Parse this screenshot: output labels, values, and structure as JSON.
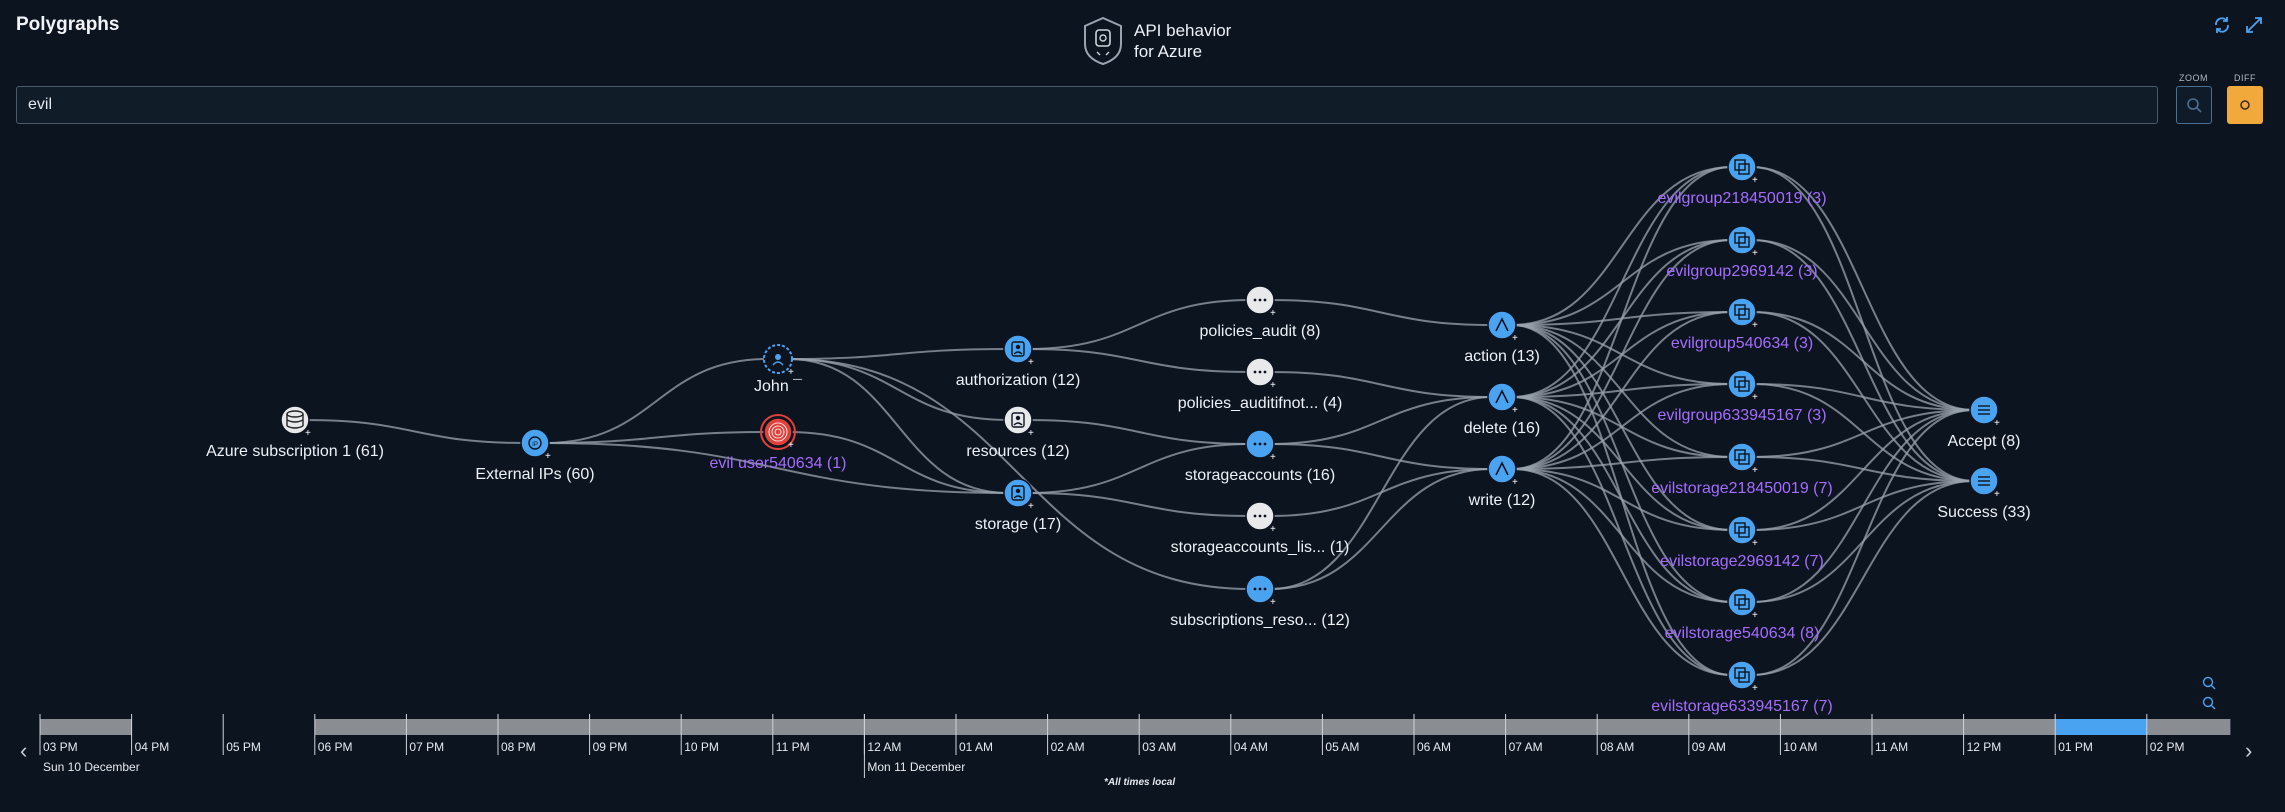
{
  "page_title": "Polygraphs",
  "header": {
    "title_line1": "API behavior",
    "title_line2": "for Azure"
  },
  "search": {
    "value": "evil"
  },
  "controls": {
    "zoom_label": "ZOOM",
    "diff_label": "DIFF"
  },
  "graph": {
    "nodes": [
      {
        "id": "azure",
        "label": "Azure subscription 1 (61)",
        "icon": "database-icon",
        "style": "gray"
      },
      {
        "id": "extip",
        "label": "External IPs (60)",
        "icon": "ip-icon",
        "style": "blue"
      },
      {
        "id": "john",
        "label": "John ¯",
        "icon": "user-dashed-icon",
        "style": "blue-dashed"
      },
      {
        "id": "evil",
        "label": "evil user540634 (1)",
        "icon": "fingerprint-icon",
        "style": "red",
        "highlight": true
      },
      {
        "id": "auth",
        "label": "authorization (12)",
        "icon": "service-icon",
        "style": "blue"
      },
      {
        "id": "resources",
        "label": "resources (12)",
        "icon": "service-icon",
        "style": "gray"
      },
      {
        "id": "storage",
        "label": "storage (17)",
        "icon": "service-icon",
        "style": "blue"
      },
      {
        "id": "pa",
        "label": "policies_audit (8)",
        "icon": "ellipsis-icon",
        "style": "gray"
      },
      {
        "id": "pain",
        "label": "policies_auditifnot... (4)",
        "icon": "ellipsis-icon",
        "style": "gray"
      },
      {
        "id": "sa",
        "label": "storageaccounts (16)",
        "icon": "ellipsis-icon",
        "style": "blue"
      },
      {
        "id": "sal",
        "label": "storageaccounts_lis... (1)",
        "icon": "ellipsis-icon",
        "style": "gray"
      },
      {
        "id": "sr",
        "label": "subscriptions_reso... (12)",
        "icon": "ellipsis-icon",
        "style": "blue"
      },
      {
        "id": "action",
        "label": "action (13)",
        "icon": "action-icon",
        "style": "blue"
      },
      {
        "id": "delete",
        "label": "delete (16)",
        "icon": "action-icon",
        "style": "blue"
      },
      {
        "id": "write",
        "label": "write (12)",
        "icon": "action-icon",
        "style": "blue"
      },
      {
        "id": "g1",
        "label": "evilgroup218450019 (3)",
        "icon": "resource-group-icon",
        "style": "blue",
        "highlight": true
      },
      {
        "id": "g2",
        "label": "evilgroup2969142 (3)",
        "icon": "resource-group-icon",
        "style": "blue",
        "highlight": true
      },
      {
        "id": "g3",
        "label": "evilgroup540634 (3)",
        "icon": "resource-group-icon",
        "style": "blue",
        "highlight": true
      },
      {
        "id": "g4",
        "label": "evilgroup633945167 (3)",
        "icon": "resource-group-icon",
        "style": "blue",
        "highlight": true
      },
      {
        "id": "s1",
        "label": "evilstorage218450019 (7)",
        "icon": "resource-group-icon",
        "style": "blue",
        "highlight": true
      },
      {
        "id": "s2",
        "label": "evilstorage2969142 (7)",
        "icon": "resource-group-icon",
        "style": "blue",
        "highlight": true
      },
      {
        "id": "s3",
        "label": "evilstorage540634 (8)",
        "icon": "resource-group-icon",
        "style": "blue",
        "highlight": true
      },
      {
        "id": "s4",
        "label": "evilstorage633945167 (7)",
        "icon": "resource-group-icon",
        "style": "blue",
        "highlight": true
      },
      {
        "id": "accept",
        "label": "Accept (8)",
        "icon": "list-icon",
        "style": "blue"
      },
      {
        "id": "success",
        "label": "Success (33)",
        "icon": "list-icon",
        "style": "blue"
      }
    ],
    "edges": [
      [
        "azure",
        "extip"
      ],
      [
        "extip",
        "john"
      ],
      [
        "extip",
        "evil"
      ],
      [
        "extip",
        "storage"
      ],
      [
        "john",
        "auth"
      ],
      [
        "john",
        "resources"
      ],
      [
        "john",
        "storage"
      ],
      [
        "john",
        "sr"
      ],
      [
        "evil",
        "storage"
      ],
      [
        "auth",
        "pa"
      ],
      [
        "auth",
        "pain"
      ],
      [
        "resources",
        "sa"
      ],
      [
        "storage",
        "sa"
      ],
      [
        "storage",
        "sal"
      ],
      [
        "pa",
        "action"
      ],
      [
        "pain",
        "delete"
      ],
      [
        "sa",
        "delete"
      ],
      [
        "sa",
        "write"
      ],
      [
        "sal",
        "write"
      ],
      [
        "sr",
        "write"
      ],
      [
        "sr",
        "delete"
      ],
      [
        "action",
        "g1"
      ],
      [
        "action",
        "g2"
      ],
      [
        "action",
        "g3"
      ],
      [
        "action",
        "g4"
      ],
      [
        "action",
        "s1"
      ],
      [
        "action",
        "s2"
      ],
      [
        "action",
        "s3"
      ],
      [
        "action",
        "s4"
      ],
      [
        "delete",
        "g1"
      ],
      [
        "delete",
        "g2"
      ],
      [
        "delete",
        "g3"
      ],
      [
        "delete",
        "g4"
      ],
      [
        "delete",
        "s1"
      ],
      [
        "delete",
        "s2"
      ],
      [
        "delete",
        "s3"
      ],
      [
        "delete",
        "s4"
      ],
      [
        "write",
        "g1"
      ],
      [
        "write",
        "g2"
      ],
      [
        "write",
        "g3"
      ],
      [
        "write",
        "g4"
      ],
      [
        "write",
        "s1"
      ],
      [
        "write",
        "s2"
      ],
      [
        "write",
        "s3"
      ],
      [
        "write",
        "s4"
      ],
      [
        "g1",
        "accept"
      ],
      [
        "g1",
        "success"
      ],
      [
        "g2",
        "accept"
      ],
      [
        "g2",
        "success"
      ],
      [
        "g3",
        "accept"
      ],
      [
        "g3",
        "success"
      ],
      [
        "g4",
        "accept"
      ],
      [
        "g4",
        "success"
      ],
      [
        "s1",
        "accept"
      ],
      [
        "s1",
        "success"
      ],
      [
        "s2",
        "accept"
      ],
      [
        "s2",
        "success"
      ],
      [
        "s3",
        "accept"
      ],
      [
        "s3",
        "success"
      ],
      [
        "s4",
        "accept"
      ],
      [
        "s4",
        "success"
      ]
    ]
  },
  "timeline": {
    "ticks": [
      "03 PM",
      "04 PM",
      "05 PM",
      "06 PM",
      "07 PM",
      "08 PM",
      "09 PM",
      "10 PM",
      "11 PM",
      "12 AM",
      "01 AM",
      "02 AM",
      "03 AM",
      "04 AM",
      "05 AM",
      "06 AM",
      "07 AM",
      "08 AM",
      "09 AM",
      "10 AM",
      "11 AM",
      "12 PM",
      "01 PM",
      "02 PM"
    ],
    "date_labels": [
      "Sun 10 December",
      "Mon 11 December"
    ],
    "footnote": "*All times local",
    "selected_hour": "01 PM"
  },
  "colors": {
    "background": "#0c1420",
    "accent": "#4aa3f0",
    "highlight_text": "#a66cff",
    "danger": "#e0413a",
    "edge": "#9aa3ad",
    "diff_button": "#f2a93b"
  }
}
